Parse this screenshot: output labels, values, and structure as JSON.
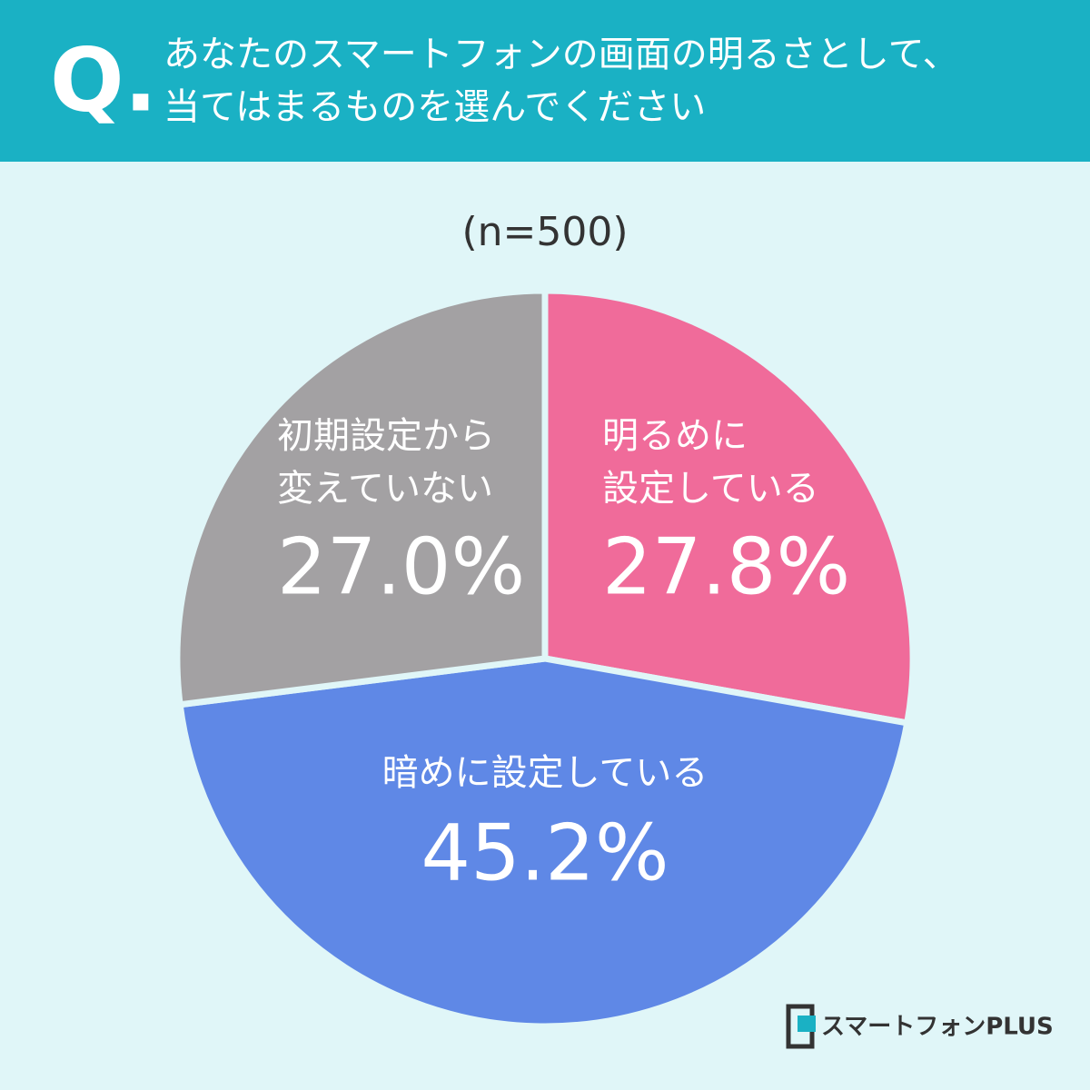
{
  "chart_data": {
    "type": "pie",
    "question_mark": "Q.",
    "title_lines": [
      "あなたのスマートフォンの画面の明るさとして、",
      "当てはまるものを選んでください"
    ],
    "subtitle": "(n=500)",
    "categories": [
      [
        "明るめに",
        "設定している"
      ],
      [
        "暗めに設定している"
      ],
      [
        "初期設定から",
        "変えていない"
      ]
    ],
    "values": [
      27.8,
      45.2,
      27.0
    ],
    "value_labels": [
      "27.8%",
      "45.2%",
      "27.0%"
    ],
    "colors": [
      "#f06b9a",
      "#5f88e6",
      "#a3a1a3"
    ],
    "source": "スマートフォンPLUS"
  }
}
